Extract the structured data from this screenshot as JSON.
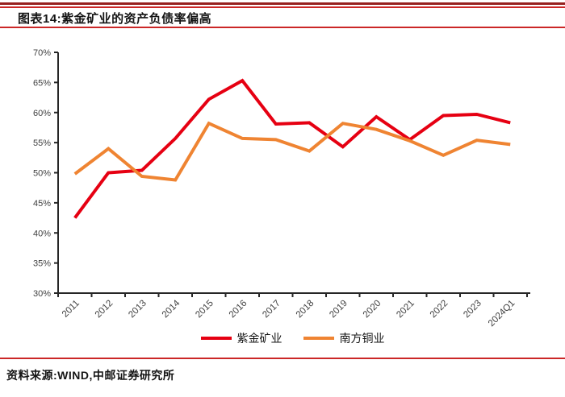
{
  "header": {
    "title": "图表14:紫金矿业的资产负债率偏高"
  },
  "footer": {
    "source": "资料来源:WIND,中邮证券研究所"
  },
  "accent": {
    "rule_red_dark": "#97201e",
    "rule_red": "#cb2727"
  },
  "chart_data": {
    "type": "line",
    "title": "",
    "xlabel": "",
    "ylabel": "",
    "categories": [
      "2011",
      "2012",
      "2013",
      "2014",
      "2015",
      "2016",
      "2017",
      "2018",
      "2019",
      "2020",
      "2021",
      "2022",
      "2023",
      "2024Q1"
    ],
    "series": [
      {
        "name": "紫金矿业",
        "color": "#e60012",
        "values": [
          42.5,
          50.0,
          50.4,
          55.7,
          62.2,
          65.3,
          58.1,
          58.3,
          54.3,
          59.3,
          55.5,
          59.5,
          59.7,
          58.3
        ]
      },
      {
        "name": "南方铜业",
        "color": "#ef8432",
        "values": [
          49.8,
          54.0,
          49.4,
          48.8,
          58.2,
          55.7,
          55.5,
          53.6,
          58.2,
          57.2,
          55.3,
          52.9,
          55.4,
          54.7
        ]
      }
    ],
    "ylim": [
      30,
      70
    ],
    "ytick_step": 5,
    "ytick_suffix": "%",
    "grid": false,
    "legend_position": "bottom",
    "axis_color": "#262626",
    "label_color": "#404040"
  }
}
